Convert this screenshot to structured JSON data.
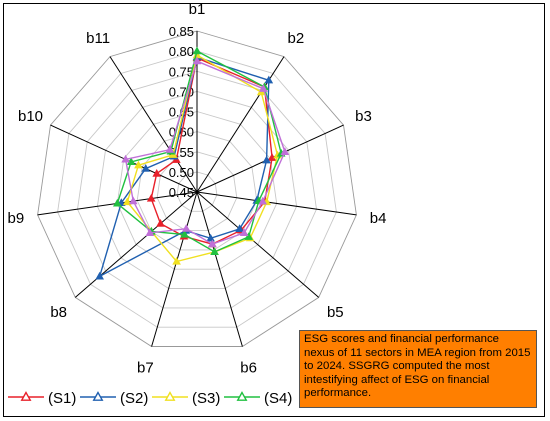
{
  "chart_data": {
    "type": "radar",
    "title": "",
    "categories": [
      "b1",
      "b2",
      "b3",
      "b4",
      "b5",
      "b6",
      "b7",
      "b8",
      "b9",
      "b10",
      "b11"
    ],
    "radial_ticks": [
      "0.45",
      "0.50",
      "0.55",
      "0.60",
      "0.65",
      "0.70",
      "0.75",
      "0.80",
      "0.85"
    ],
    "rlim": [
      0.45,
      0.85
    ],
    "grid": true,
    "legend_position": "bottom-left",
    "series": [
      {
        "name": "(S1)",
        "color": "#e8202a",
        "values": [
          0.783,
          0.76,
          0.655,
          0.62,
          0.595,
          0.585,
          0.565,
          0.57,
          0.565,
          0.56,
          0.545
        ]
      },
      {
        "name": "(S2)",
        "color": "#2060b0",
        "values": [
          0.785,
          0.78,
          0.64,
          0.6,
          0.59,
          0.57,
          0.55,
          0.77,
          0.64,
          0.59,
          0.555
        ]
      },
      {
        "name": "(S3)",
        "color": "#f0e020",
        "values": [
          0.79,
          0.745,
          0.67,
          0.625,
          0.625,
          0.605,
          0.63,
          0.6,
          0.625,
          0.61,
          0.56
        ]
      },
      {
        "name": "(S4)",
        "color": "#20c040",
        "values": [
          0.8,
          0.76,
          0.68,
          0.605,
          0.62,
          0.605,
          0.56,
          0.6,
          0.65,
          0.63,
          0.57
        ]
      },
      {
        "name": "",
        "color": "#c070d8",
        "values": [
          0.775,
          0.755,
          0.69,
          0.615,
          0.605,
          0.585,
          0.545,
          0.605,
          0.61,
          0.645,
          0.575
        ]
      }
    ]
  },
  "annotation": {
    "text": "ESG scores and financial performance nexus of 11 sectors in MEA region from 2015 to 2024. SSGRG computed the most intestifying affect of ESG on financial performance."
  }
}
